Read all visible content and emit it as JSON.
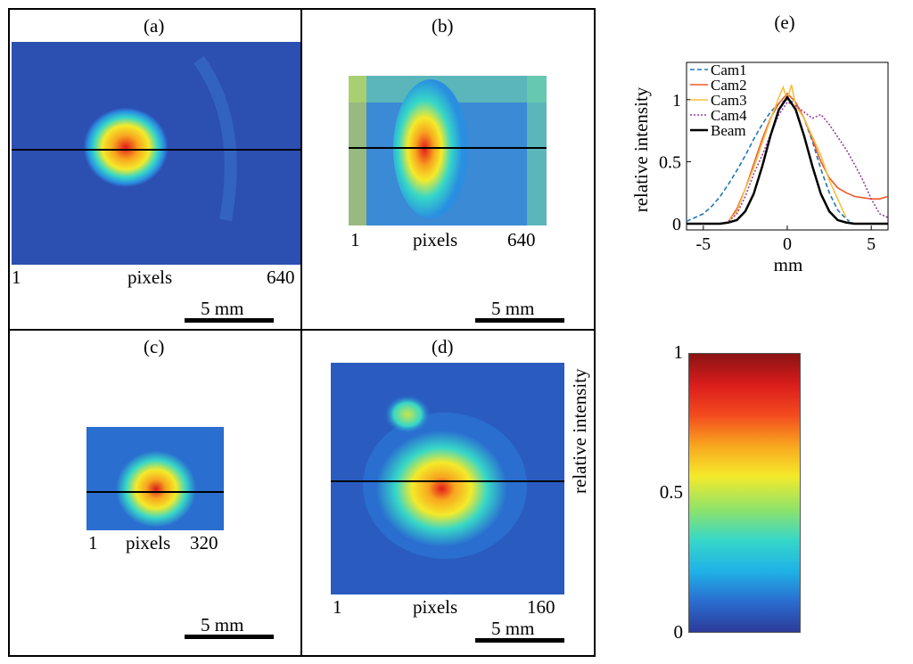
{
  "panels": {
    "a": {
      "label": "(a)",
      "axis_start": "1",
      "axis_mid": "pixels",
      "axis_end": "640",
      "scale": "5 mm"
    },
    "b": {
      "label": "(b)",
      "axis_start": "1",
      "axis_mid": "pixels",
      "axis_end": "640",
      "scale": "5 mm"
    },
    "c": {
      "label": "(c)",
      "axis_start": "1",
      "axis_mid": "pixels",
      "axis_end": "320",
      "scale": "5 mm"
    },
    "d": {
      "label": "(d)",
      "axis_start": "1",
      "axis_mid": "pixels",
      "axis_end": "160",
      "scale": "5 mm"
    }
  },
  "colormap": {
    "stops": [
      "#2c3b99",
      "#2a6ed0",
      "#1fb2e6",
      "#36d7c8",
      "#8fe36a",
      "#f4ea2a",
      "#f8a61f",
      "#f34a1e",
      "#d91c1c",
      "#8b1313"
    ]
  },
  "colorbar": {
    "ylabel": "relative intensity",
    "ticks": [
      {
        "value": 0,
        "label": "0"
      },
      {
        "value": 0.5,
        "label": "0.5"
      },
      {
        "value": 1,
        "label": "1"
      }
    ]
  },
  "chart_data": {
    "type": "line",
    "title": "(e)",
    "xlabel": "mm",
    "ylabel": "relative intensity",
    "xlim": [
      -6,
      6
    ],
    "ylim": [
      -0.05,
      1.3
    ],
    "xticks": [
      -5,
      0,
      5
    ],
    "yticks": [
      0,
      0.5,
      1
    ],
    "grid": false,
    "legend_position": "top-left",
    "series": [
      {
        "name": "Cam1",
        "color": "#1f77b4",
        "dash": "5,3",
        "x": [
          -6,
          -5.5,
          -5,
          -4.5,
          -4,
          -3.5,
          -3,
          -2.5,
          -2,
          -1.5,
          -1,
          -0.5,
          0,
          0.5,
          1,
          1.5,
          2,
          2.5,
          3,
          3.5,
          3.7
        ],
        "y": [
          0.02,
          0.05,
          0.08,
          0.14,
          0.22,
          0.32,
          0.43,
          0.55,
          0.68,
          0.8,
          0.9,
          0.97,
          1.0,
          0.97,
          0.85,
          0.66,
          0.44,
          0.25,
          0.11,
          0.04,
          0.02
        ]
      },
      {
        "name": "Cam2",
        "color": "#f05a28",
        "dash": "",
        "x": [
          -3.5,
          -3,
          -2.5,
          -2,
          -1.5,
          -1,
          -0.5,
          0,
          0.5,
          1,
          1.5,
          2,
          2.5,
          3,
          3.5,
          4,
          4.5,
          5,
          5.5,
          6
        ],
        "y": [
          0.02,
          0.12,
          0.28,
          0.48,
          0.68,
          0.85,
          0.97,
          1.05,
          0.98,
          0.85,
          0.68,
          0.5,
          0.37,
          0.29,
          0.25,
          0.22,
          0.21,
          0.2,
          0.2,
          0.22
        ]
      },
      {
        "name": "Cam3",
        "color": "#f5c040",
        "dash": "",
        "x": [
          -3.5,
          -3,
          -2.5,
          -2,
          -1.5,
          -1,
          -0.5,
          -0.25,
          0,
          0.25,
          0.5,
          1,
          1.5,
          2,
          2.5,
          3,
          3.5
        ],
        "y": [
          0.02,
          0.1,
          0.28,
          0.45,
          0.65,
          0.84,
          1.02,
          1.1,
          1.0,
          1.12,
          0.95,
          0.85,
          0.7,
          0.55,
          0.35,
          0.2,
          0.05
        ]
      },
      {
        "name": "Cam4",
        "color": "#9a3aa8",
        "dash": "2,2",
        "x": [
          -3.5,
          -3,
          -2.5,
          -2,
          -1.5,
          -1,
          -0.5,
          0,
          0.5,
          1,
          1.5,
          2,
          2.5,
          3,
          3.5,
          4,
          4.5,
          5,
          5.5,
          6
        ],
        "y": [
          0.02,
          0.08,
          0.22,
          0.4,
          0.55,
          0.72,
          0.88,
          0.98,
          0.95,
          0.9,
          0.85,
          0.88,
          0.8,
          0.7,
          0.6,
          0.48,
          0.35,
          0.2,
          0.08,
          0.05
        ]
      },
      {
        "name": "Beam",
        "color": "#000000",
        "dash": "",
        "x": [
          -6,
          -5.5,
          -5,
          -4.5,
          -4,
          -3.5,
          -3,
          -2.5,
          -2,
          -1.5,
          -1,
          -0.5,
          0,
          0.5,
          1,
          1.5,
          2,
          2.5,
          3,
          3.5,
          4,
          4.5,
          5,
          5.5,
          6
        ],
        "y": [
          0.0,
          0.0,
          0.0,
          0.0,
          0.0,
          0.01,
          0.03,
          0.1,
          0.24,
          0.46,
          0.71,
          0.92,
          1.02,
          0.92,
          0.71,
          0.46,
          0.24,
          0.1,
          0.03,
          0.01,
          0.0,
          0.0,
          0.0,
          0.0,
          0.0
        ]
      }
    ]
  }
}
